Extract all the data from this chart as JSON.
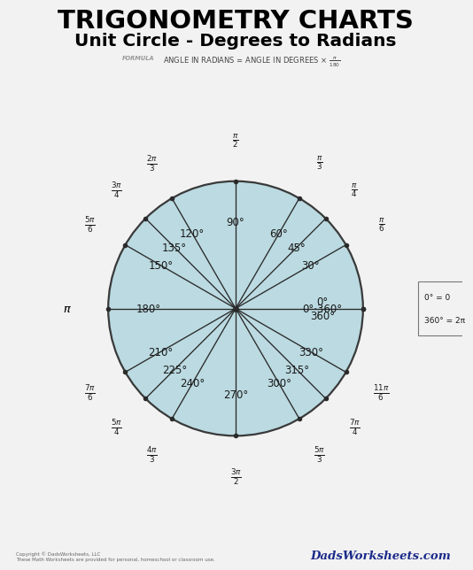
{
  "title1": "TRIGONOMETRY CHARTS",
  "title2": "Unit Circle - Degrees to Radians",
  "bg_color": "#f2f2f2",
  "circle_fill": "#8ec8d4",
  "circle_alpha": 0.55,
  "circle_edge_color": "#3a3a3a",
  "line_color": "#2a2a2a",
  "text_color": "#1a1a1a",
  "dot_color": "#2a2a2a",
  "copyright": "Copyright © DadsWorksheets, LLC\nThese Math Worksheets are provided for personal, homeschool or classroom use.",
  "watermark": "DadsWorksheets.com",
  "angles_deg": [
    0,
    30,
    45,
    60,
    90,
    120,
    135,
    150,
    180,
    210,
    225,
    240,
    270,
    300,
    315,
    330
  ],
  "inside_deg_labels": [
    "",
    "30°",
    "45°",
    "60°",
    "90°",
    "120°",
    "135°",
    "150°",
    "180°",
    "210°",
    "225°",
    "240°",
    "270°",
    "300°",
    "315°",
    "330°"
  ],
  "outside_num": [
    "",
    "\\pi",
    "\\pi",
    "\\pi",
    "\\pi",
    "2\\pi",
    "3\\pi",
    "5\\pi",
    "\\pi",
    "7\\pi",
    "5\\pi",
    "4\\pi",
    "3\\pi",
    "5\\pi",
    "7\\pi",
    "11\\pi"
  ],
  "outside_den": [
    "",
    "6",
    "4",
    "3",
    "2",
    "3",
    "4",
    "6",
    "",
    "6",
    "4",
    "3",
    "2",
    "3",
    "4",
    "6"
  ],
  "deg_label_r": 0.68,
  "rad_label_r": 1.32,
  "note_right_line1": "0° = 0",
  "note_right_line2": "360° = 2π"
}
